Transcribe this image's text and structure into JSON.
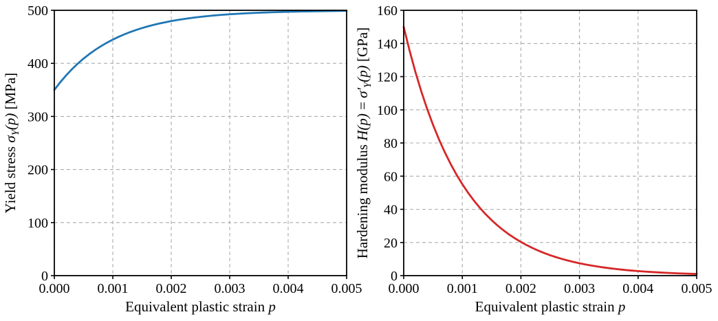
{
  "figure": {
    "background": "#ffffff",
    "grid_color": "#ababab",
    "frame_color": "#000000",
    "text_color": "#000000"
  },
  "chart_data": [
    {
      "type": "line",
      "title": "",
      "xlabel": "Equivalent plastic strain p",
      "xlabel_parts": [
        {
          "t": "Equivalent plastic strain ",
          "style": "normal"
        },
        {
          "t": "p",
          "style": "italic"
        }
      ],
      "ylabel": "Yield stress σY(p) [MPa]",
      "ylabel_parts": [
        {
          "t": "Yield stress ",
          "style": "normal"
        },
        {
          "t": "σ",
          "style": "italic"
        },
        {
          "t": "Y",
          "style": "sub"
        },
        {
          "t": "(p)",
          "style": "italic"
        },
        {
          "t": " [MPa]",
          "style": "normal"
        }
      ],
      "xlim": [
        0,
        0.005
      ],
      "ylim": [
        0,
        500
      ],
      "xticks": [
        0,
        0.001,
        0.002,
        0.003,
        0.004,
        0.005
      ],
      "xtick_labels": [
        "0.000",
        "0.001",
        "0.002",
        "0.003",
        "0.004",
        "0.005"
      ],
      "yticks": [
        0,
        100,
        200,
        300,
        400,
        500
      ],
      "ytick_labels": [
        "0",
        "100",
        "200",
        "300",
        "400",
        "500"
      ],
      "grid": true,
      "grid_style": "dashed",
      "legend": "none",
      "series": [
        {
          "name": "yield-stress",
          "color": "#1f77b4",
          "line_width": 2.8,
          "x": [
            0,
            0.0001,
            0.0002,
            0.0003,
            0.0004,
            0.0005,
            0.0006,
            0.0007,
            0.0008,
            0.0009,
            0.001,
            0.0011,
            0.0012,
            0.0013,
            0.0014,
            0.0015,
            0.0016,
            0.0017,
            0.0018,
            0.0019,
            0.002,
            0.0021,
            0.0022,
            0.0023,
            0.0024,
            0.0025,
            0.0026,
            0.0027,
            0.0028,
            0.0029,
            0.003,
            0.0031,
            0.0032,
            0.0033,
            0.0034,
            0.0035,
            0.0036,
            0.0037,
            0.0038,
            0.0039,
            0.004,
            0.0041,
            0.0042,
            0.0043,
            0.0044,
            0.0045,
            0.0046,
            0.0047,
            0.0048,
            0.0049,
            0.005
          ],
          "y": [
            350,
            364.27,
            377.19,
            388.88,
            399.45,
            409.02,
            417.68,
            425.51,
            432.6,
            439.02,
            444.82,
            450.07,
            454.82,
            459.12,
            463.01,
            466.53,
            469.72,
            472.6,
            475.21,
            477.56,
            479.7,
            481.63,
            483.38,
            484.96,
            486.39,
            487.69,
            488.86,
            489.92,
            490.88,
            491.75,
            492.53,
            493.24,
            493.89,
            494.47,
            495,
            495.47,
            495.9,
            496.29,
            496.65,
            496.96,
            497.25,
            497.51,
            497.75,
            497.96,
            498.16,
            498.33,
            498.49,
            498.64,
            498.77,
            498.88,
            498.99
          ]
        }
      ]
    },
    {
      "type": "line",
      "title": "",
      "xlabel": "Equivalent plastic strain p",
      "xlabel_parts": [
        {
          "t": "Equivalent plastic strain ",
          "style": "normal"
        },
        {
          "t": "p",
          "style": "italic"
        }
      ],
      "ylabel": "Hardening modulus H(p) = σ′Y(p) [GPa]",
      "ylabel_parts": [
        {
          "t": "Hardening modulus ",
          "style": "normal"
        },
        {
          "t": "H(p)",
          "style": "italic"
        },
        {
          "t": " = ",
          "style": "normal"
        },
        {
          "t": "σ′",
          "style": "italic"
        },
        {
          "t": "Y",
          "style": "sub"
        },
        {
          "t": "(p)",
          "style": "italic"
        },
        {
          "t": " [GPa]",
          "style": "normal"
        }
      ],
      "xlim": [
        0,
        0.005
      ],
      "ylim": [
        0,
        160
      ],
      "xticks": [
        0,
        0.001,
        0.002,
        0.003,
        0.004,
        0.005
      ],
      "xtick_labels": [
        "0.000",
        "0.001",
        "0.002",
        "0.003",
        "0.004",
        "0.005"
      ],
      "yticks": [
        0,
        20,
        40,
        60,
        80,
        100,
        120,
        140,
        160
      ],
      "ytick_labels": [
        "0",
        "20",
        "40",
        "60",
        "80",
        "100",
        "120",
        "140",
        "160"
      ],
      "grid": true,
      "grid_style": "dashed",
      "legend": "none",
      "series": [
        {
          "name": "hardening-modulus",
          "color": "#d62728",
          "line_width": 2.8,
          "x": [
            0,
            0.0001,
            0.0002,
            0.0003,
            0.0004,
            0.0005,
            0.0006,
            0.0007,
            0.0008,
            0.0009,
            0.001,
            0.0011,
            0.0012,
            0.0013,
            0.0014,
            0.0015,
            0.0016,
            0.0017,
            0.0018,
            0.0019,
            0.002,
            0.0021,
            0.0022,
            0.0023,
            0.0024,
            0.0025,
            0.0026,
            0.0027,
            0.0028,
            0.0029,
            0.003,
            0.0031,
            0.0032,
            0.0033,
            0.0034,
            0.0035,
            0.0036,
            0.0037,
            0.0038,
            0.0039,
            0.004,
            0.0041,
            0.0042,
            0.0043,
            0.0044,
            0.0045,
            0.0046,
            0.0047,
            0.0048,
            0.0049,
            0.005
          ],
          "y": [
            150,
            135.73,
            122.81,
            111.12,
            100.55,
            90.98,
            82.32,
            74.49,
            67.4,
            60.98,
            55.18,
            49.93,
            45.18,
            40.88,
            36.99,
            33.47,
            30.28,
            27.4,
            24.79,
            22.44,
            20.3,
            18.37,
            16.62,
            15.04,
            13.61,
            12.31,
            11.14,
            10.08,
            9.12,
            8.25,
            7.47,
            6.76,
            6.11,
            5.53,
            5,
            4.53,
            4.1,
            3.71,
            3.35,
            3.04,
            2.75,
            2.49,
            2.25,
            2.04,
            1.84,
            1.67,
            1.51,
            1.36,
            1.23,
            1.12,
            1.01
          ]
        }
      ]
    }
  ]
}
